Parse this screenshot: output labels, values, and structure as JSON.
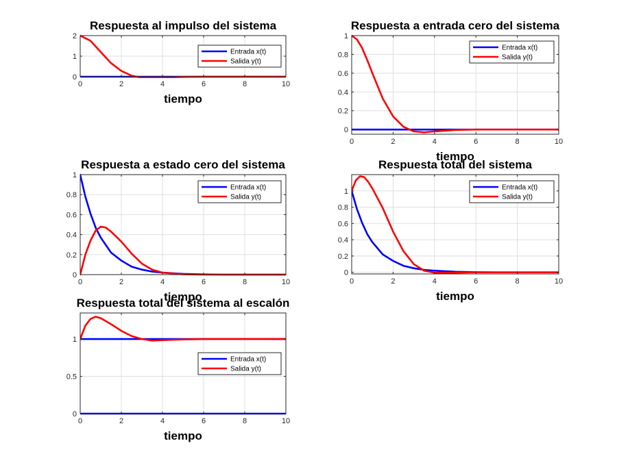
{
  "chart_data": [
    {
      "type": "line",
      "title": "Respuesta al impulso del sistema",
      "xlabel": "tiempo",
      "ylabel": "",
      "xlim": [
        0,
        10
      ],
      "ylim": [
        0,
        2
      ],
      "xticks": [
        "0",
        "2",
        "4",
        "6",
        "8",
        "10"
      ],
      "yticks": [
        "0",
        "1",
        "2"
      ],
      "grid": true,
      "legend_position": "top-right",
      "series": [
        {
          "name": "Entrada x(t)",
          "color": "#0000ff",
          "x": [
            0,
            10
          ],
          "y": [
            0,
            0
          ]
        },
        {
          "name": "Salida y(t)",
          "color": "#ff0000",
          "x": [
            0,
            0.5,
            1,
            1.5,
            2,
            2.5,
            3,
            3.5,
            4,
            5,
            6,
            7,
            8,
            10
          ],
          "y": [
            2,
            1.75,
            1.2,
            0.66,
            0.28,
            0.05,
            -0.05,
            -0.06,
            -0.04,
            -0.01,
            0,
            0,
            0,
            0
          ]
        }
      ]
    },
    {
      "type": "line",
      "title": "Respuesta a entrada cero del sistema",
      "xlabel": "tiempo",
      "ylabel": "",
      "xlim": [
        0,
        10
      ],
      "ylim": [
        -0.05,
        1
      ],
      "xticks": [
        "0",
        "2",
        "4",
        "6",
        "8",
        "10"
      ],
      "yticks": [
        "0",
        "0.2",
        "0.4",
        "0.6",
        "0.8",
        "1"
      ],
      "grid": true,
      "legend_position": "top-right",
      "series": [
        {
          "name": "Entrada x(t)",
          "color": "#0000ff",
          "x": [
            0,
            10
          ],
          "y": [
            0,
            0
          ]
        },
        {
          "name": "Salida y(t)",
          "color": "#ff0000",
          "x": [
            0,
            0.25,
            0.5,
            0.75,
            1,
            1.5,
            2,
            2.5,
            3,
            3.5,
            4,
            5,
            6,
            7,
            8,
            10
          ],
          "y": [
            1,
            0.96,
            0.87,
            0.74,
            0.6,
            0.33,
            0.14,
            0.03,
            -0.02,
            -0.03,
            -0.02,
            -0.005,
            0,
            0,
            0,
            0
          ]
        }
      ]
    },
    {
      "type": "line",
      "title": "Respuesta a estado cero del sistema",
      "xlabel": "tiempo",
      "ylabel": "",
      "xlim": [
        0,
        10
      ],
      "ylim": [
        0,
        1
      ],
      "xticks": [
        "0",
        "2",
        "4",
        "6",
        "8",
        "10"
      ],
      "yticks": [
        "0",
        "0.2",
        "0.4",
        "0.6",
        "0.8",
        "1"
      ],
      "grid": true,
      "legend_position": "top-right",
      "series": [
        {
          "name": "Entrada x(t)",
          "color": "#0000ff",
          "x": [
            0,
            0.25,
            0.5,
            0.75,
            1,
            1.5,
            2,
            2.5,
            3,
            3.5,
            4,
            5,
            6,
            7,
            8,
            10
          ],
          "y": [
            1,
            0.78,
            0.61,
            0.47,
            0.37,
            0.22,
            0.14,
            0.08,
            0.05,
            0.03,
            0.02,
            0.007,
            0.002,
            0,
            0,
            0
          ]
        },
        {
          "name": "Salida y(t)",
          "color": "#ff0000",
          "x": [
            0,
            0.25,
            0.5,
            0.75,
            1,
            1.25,
            1.5,
            2,
            2.5,
            3,
            3.5,
            4,
            5,
            6,
            7,
            8,
            10
          ],
          "y": [
            0,
            0.2,
            0.34,
            0.44,
            0.48,
            0.47,
            0.43,
            0.33,
            0.21,
            0.11,
            0.05,
            0.02,
            0.003,
            0,
            0,
            0,
            0
          ]
        }
      ]
    },
    {
      "type": "line",
      "title": "Respuesta total del sistema",
      "xlabel": "tiempo",
      "ylabel": "",
      "xlim": [
        0,
        10
      ],
      "ylim": [
        -0.02,
        1.2
      ],
      "xticks": [
        "0",
        "2",
        "4",
        "6",
        "8",
        "10"
      ],
      "yticks": [
        "0",
        "0.2",
        "0.4",
        "0.6",
        "0.8",
        "1"
      ],
      "grid": true,
      "legend_position": "top-right",
      "series": [
        {
          "name": "Entrada x(t)",
          "color": "#0000ff",
          "x": [
            0,
            0.25,
            0.5,
            0.75,
            1,
            1.5,
            2,
            2.5,
            3,
            3.5,
            4,
            5,
            6,
            7,
            8,
            10
          ],
          "y": [
            1,
            0.78,
            0.61,
            0.47,
            0.37,
            0.22,
            0.14,
            0.08,
            0.05,
            0.03,
            0.02,
            0.007,
            0.002,
            0,
            0,
            0
          ]
        },
        {
          "name": "Salida y(t)",
          "color": "#ff0000",
          "x": [
            0,
            0.2,
            0.4,
            0.6,
            0.8,
            1,
            1.5,
            2,
            2.5,
            3,
            3.5,
            4,
            5,
            6,
            7,
            8,
            10
          ],
          "y": [
            1,
            1.13,
            1.18,
            1.17,
            1.11,
            1.03,
            0.79,
            0.5,
            0.26,
            0.1,
            0.02,
            -0.005,
            -0.005,
            0,
            0,
            0,
            0
          ]
        }
      ]
    },
    {
      "type": "line",
      "title": "Respuesta total del sistema al escalón",
      "xlabel": "tiempo",
      "ylabel": "",
      "xlim": [
        0,
        10
      ],
      "ylim": [
        0,
        1.35
      ],
      "xticks": [
        "0",
        "2",
        "4",
        "6",
        "8",
        "10"
      ],
      "yticks": [
        "0",
        "0.5",
        "1"
      ],
      "grid": true,
      "legend_position": "center-right",
      "series": [
        {
          "name": "Entrada x(t)",
          "color": "#0000ff",
          "x": [
            0,
            10
          ],
          "y": [
            1,
            1
          ]
        },
        {
          "name": "Salida y(t)",
          "color": "#ff0000",
          "x": [
            0,
            0.25,
            0.5,
            0.75,
            1,
            1.5,
            2,
            2.5,
            3,
            3.5,
            4,
            5,
            6,
            7,
            8,
            10
          ],
          "y": [
            1,
            1.18,
            1.27,
            1.3,
            1.28,
            1.2,
            1.11,
            1.04,
            1.0,
            0.98,
            0.985,
            0.995,
            1,
            1,
            1,
            1
          ]
        },
        {
          "name": "",
          "color": "#0000ff",
          "x": [
            0,
            10
          ],
          "y": [
            0,
            0
          ]
        }
      ]
    }
  ]
}
